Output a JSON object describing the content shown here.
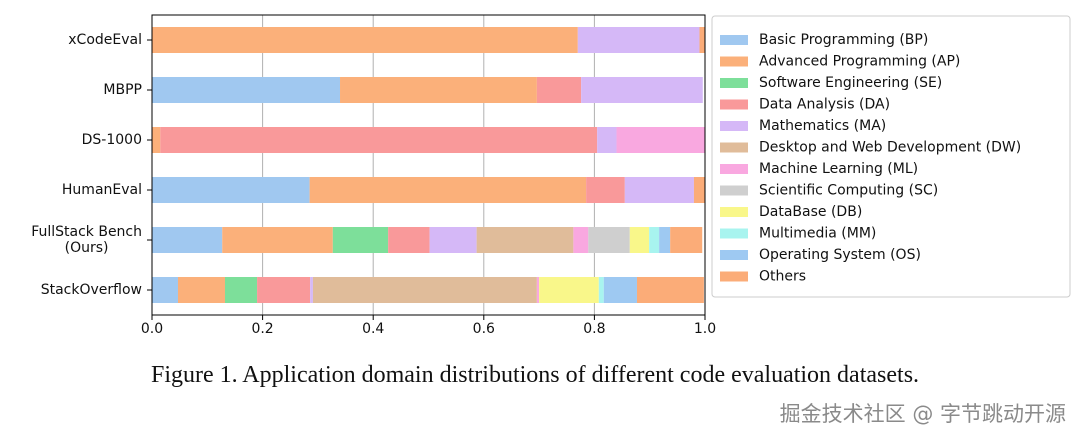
{
  "chart_data": {
    "type": "stacked-barh",
    "categories": [
      "xCodeEval",
      "MBPP",
      "DS-1000",
      "HumanEval",
      "FullStack Bench\n(Ours)",
      "StackOverflow"
    ],
    "series": [
      {
        "name": "Basic Programming (BP)",
        "color": "#a0c8f0",
        "values": [
          0,
          0.34,
          0,
          0.285,
          0.127,
          0.047
        ]
      },
      {
        "name": "Advanced Programming (AP)",
        "color": "#fbb07a",
        "values": [
          0.77,
          0.356,
          0.015,
          0.5,
          0.2,
          0.085
        ]
      },
      {
        "name": "Software Engineering (SE)",
        "color": "#7ddf9a",
        "values": [
          0,
          0,
          0,
          0,
          0.1,
          0.058
        ]
      },
      {
        "name": "Data Analysis (DA)",
        "color": "#f9999a",
        "values": [
          0,
          0.08,
          0.79,
          0.07,
          0.075,
          0.096
        ]
      },
      {
        "name": "Mathematics (MA)",
        "color": "#d5b8f7",
        "values": [
          0.22,
          0.22,
          0.035,
          0.125,
          0.085,
          0.005
        ]
      },
      {
        "name": "Desktop and Web Development (DW)",
        "color": "#e0bc9a",
        "values": [
          0,
          0,
          0,
          0,
          0.175,
          0.405
        ]
      },
      {
        "name": "Machine Learning (ML)",
        "color": "#f9a8e0",
        "values": [
          0,
          0,
          0.16,
          0,
          0.027,
          0.004
        ]
      },
      {
        "name": "Scientific Computing (SC)",
        "color": "#cfcfcf",
        "values": [
          0,
          0,
          0,
          0,
          0.075,
          0
        ]
      },
      {
        "name": "DataBase (DB)",
        "color": "#f9f78a",
        "values": [
          0,
          0,
          0,
          0,
          0.035,
          0.108
        ]
      },
      {
        "name": "Multimedia (MM)",
        "color": "#a8f4ef",
        "values": [
          0,
          0,
          0,
          0,
          0.018,
          0.009
        ]
      },
      {
        "name": "Operating System (OS)",
        "color": "#9ec9f2",
        "values": [
          0,
          0,
          0,
          0,
          0.02,
          0.06
        ]
      },
      {
        "name": "Others",
        "color": "#fbac78",
        "values": [
          0.01,
          0,
          0,
          0.02,
          0.058,
          0.121
        ]
      }
    ],
    "xlim": [
      0,
      1
    ],
    "xticks": [
      {
        "value": 0,
        "label": "0.0"
      },
      0.2,
      0.4,
      0.6,
      0.8,
      {
        "value": 1,
        "label": "1.0"
      }
    ],
    "grid": true,
    "caption": "Figure 1. Application domain distributions of different code evaluation datasets.",
    "watermark": "掘金技术社区 @ 字节跳动开源"
  }
}
